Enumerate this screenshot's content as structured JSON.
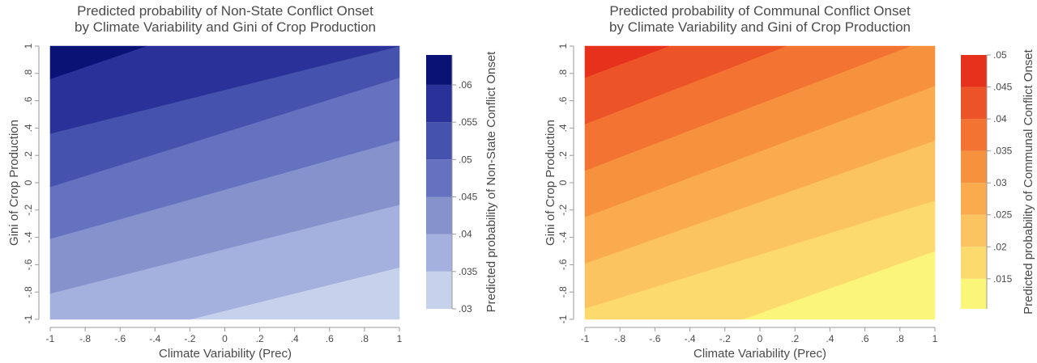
{
  "chart_data": [
    {
      "type": "heatmap",
      "subtype": "contour",
      "title": "Predicted probability of Non-State Conflict Onset",
      "subtitle": "by Climate Variability and Gini of Crop Production",
      "xlabel": "Climate Variability (Prec)",
      "ylabel": "Gini of Crop Production",
      "colorbar_label": "Predicted probability of Non-State Conflict Onset",
      "xlim": [
        -1,
        1
      ],
      "ylim": [
        -1,
        1
      ],
      "x_ticks": [
        -1,
        -0.8,
        -0.6,
        -0.4,
        -0.2,
        0,
        0.2,
        0.4,
        0.6,
        0.8,
        1
      ],
      "x_tick_labels": [
        "-1",
        "-.8",
        "-.6",
        "-.4",
        "-.2",
        "0",
        ".2",
        ".4",
        ".6",
        ".8",
        "1"
      ],
      "y_ticks": [
        -1,
        -0.8,
        -0.6,
        -0.4,
        -0.2,
        0,
        0.2,
        0.4,
        0.6,
        0.8,
        1
      ],
      "y_tick_labels": [
        "-1",
        "-.8",
        "-.6",
        "-.4",
        "-.2",
        "0",
        ".2",
        ".4",
        ".6",
        ".8",
        "1"
      ],
      "levels": [
        0.03,
        0.035,
        0.04,
        0.045,
        0.05,
        0.055,
        0.06
      ],
      "level_labels": [
        ".03",
        ".035",
        ".04",
        ".045",
        ".05",
        ".055",
        ".06"
      ],
      "colorbar_range": [
        0.03,
        0.064
      ],
      "band_colors": [
        "#c6d2ec",
        "#a4b0dd",
        "#8592cc",
        "#6472bf",
        "#4653ae",
        "#2a3198",
        "#0a1275"
      ],
      "contour_lines": [
        {
          "value": 0.06,
          "x1": -1,
          "y1": 0.76,
          "x2": -0.45,
          "y2": 1.0
        },
        {
          "value": 0.055,
          "x1": -1,
          "y1": 0.36,
          "x2": 1,
          "y2": 1.0
        },
        {
          "value": 0.05,
          "x1": -1,
          "y1": -0.03,
          "x2": 1,
          "y2": 0.77
        },
        {
          "value": 0.045,
          "x1": -1,
          "y1": -0.41,
          "x2": 1,
          "y2": 0.31
        },
        {
          "value": 0.04,
          "x1": -1,
          "y1": -0.81,
          "x2": 1,
          "y2": -0.16
        },
        {
          "value": 0.035,
          "x1": -0.2,
          "y1": -1.0,
          "x2": 1,
          "y2": -0.62
        }
      ]
    },
    {
      "type": "heatmap",
      "subtype": "contour",
      "title": "Predicted probability of Communal Conflict Onset",
      "subtitle": "by Climate Variability and Gini of Crop Production",
      "xlabel": "Climate Variability (Prec)",
      "ylabel": "Gini of Crop Production",
      "colorbar_label": "Predicted probability of Communal Conflict Onset",
      "xlim": [
        -1,
        1
      ],
      "ylim": [
        -1,
        1
      ],
      "x_ticks": [
        -1,
        -0.8,
        -0.6,
        -0.4,
        -0.2,
        0,
        0.2,
        0.4,
        0.6,
        0.8,
        1
      ],
      "x_tick_labels": [
        "-1",
        "-.8",
        "-.6",
        "-.4",
        "-.2",
        "0",
        ".2",
        ".4",
        ".6",
        ".8",
        "1"
      ],
      "y_ticks": [
        -1,
        -0.8,
        -0.6,
        -0.4,
        -0.2,
        0,
        0.2,
        0.4,
        0.6,
        0.8,
        1
      ],
      "y_tick_labels": [
        "-1",
        "-.8",
        "-.6",
        "-.4",
        "-.2",
        "0",
        ".2",
        ".4",
        ".6",
        ".8",
        "1"
      ],
      "levels": [
        0.015,
        0.02,
        0.025,
        0.03,
        0.035,
        0.04,
        0.045,
        0.05
      ],
      "level_labels": [
        ".015",
        ".02",
        ".025",
        ".03",
        ".035",
        ".04",
        ".045",
        ".05"
      ],
      "colorbar_range": [
        0.0103,
        0.05
      ],
      "band_colors": [
        "#fbf67a",
        "#fdda6e",
        "#fcc460",
        "#f9ab4e",
        "#f6923e",
        "#f27332",
        "#ec5427",
        "#e6321c"
      ],
      "contour_lines": [
        {
          "value": 0.045,
          "x1": -1,
          "y1": 0.77,
          "x2": -0.52,
          "y2": 1.0
        },
        {
          "value": 0.04,
          "x1": -1,
          "y1": 0.43,
          "x2": 0.15,
          "y2": 1.0
        },
        {
          "value": 0.035,
          "x1": -1,
          "y1": 0.09,
          "x2": 0.86,
          "y2": 1.0
        },
        {
          "value": 0.03,
          "x1": -1,
          "y1": -0.25,
          "x2": 1,
          "y2": 0.71
        },
        {
          "value": 0.025,
          "x1": -1,
          "y1": -0.59,
          "x2": 1,
          "y2": 0.31
        },
        {
          "value": 0.02,
          "x1": -1,
          "y1": -0.92,
          "x2": 1,
          "y2": -0.13
        },
        {
          "value": 0.015,
          "x1": -0.1,
          "y1": -1.0,
          "x2": 1,
          "y2": -0.5
        }
      ]
    }
  ]
}
